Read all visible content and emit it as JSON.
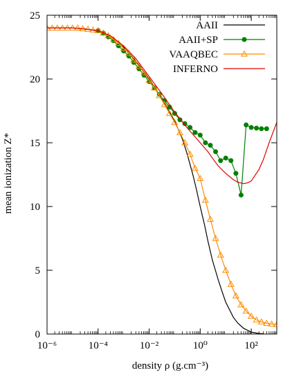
{
  "chart_data": {
    "type": "line",
    "xlabel": "density ρ (g.cm⁻³)",
    "ylabel": "mean ionization Z*",
    "x_scale": "log",
    "xlim": [
      1e-06,
      1000
    ],
    "ylim": [
      0,
      25
    ],
    "x_ticks": [
      1e-06,
      0.0001,
      0.01,
      1,
      100
    ],
    "x_tick_labels": [
      "10⁻⁶",
      "10⁻⁴",
      "10⁻²",
      "10⁰",
      "10²"
    ],
    "y_ticks": [
      0,
      5,
      10,
      15,
      20,
      25
    ],
    "y_tick_labels": [
      "0",
      "5",
      "10",
      "15",
      "20",
      "25"
    ],
    "legend_position": "top-right",
    "series": [
      {
        "name": "AAII",
        "color": "#000000",
        "marker": "none",
        "x": [
          1e-06,
          1e-05,
          3e-05,
          0.0001,
          0.0003,
          0.001,
          0.003,
          0.01,
          0.03,
          0.1,
          0.2,
          0.3,
          0.5,
          0.7,
          1,
          1.5,
          2,
          3,
          5,
          7,
          10,
          20,
          30,
          50,
          100,
          200,
          300
        ],
        "y": [
          24.0,
          24.0,
          23.95,
          23.75,
          23.3,
          22.5,
          21.4,
          20.0,
          18.5,
          16.7,
          15.3,
          14.2,
          12.6,
          11.4,
          10.0,
          8.5,
          7.3,
          5.8,
          4.3,
          3.4,
          2.5,
          1.3,
          0.85,
          0.45,
          0.15,
          0.04,
          0.02
        ]
      },
      {
        "name": "AAII+SP",
        "color": "#008000",
        "marker": "circle",
        "x": [
          0.0001,
          0.00016,
          0.00025,
          0.0004,
          0.00063,
          0.001,
          0.0016,
          0.0025,
          0.004,
          0.0063,
          0.01,
          0.016,
          0.025,
          0.04,
          0.063,
          0.1,
          0.16,
          0.25,
          0.4,
          0.63,
          1.0,
          1.6,
          2.5,
          4,
          6.3,
          10,
          16,
          25,
          40,
          63,
          100,
          160,
          250,
          400
        ],
        "y": [
          23.8,
          23.6,
          23.3,
          23.0,
          22.6,
          22.2,
          21.8,
          21.3,
          20.8,
          20.3,
          19.8,
          19.3,
          18.8,
          18.3,
          17.8,
          17.3,
          16.8,
          16.5,
          16.2,
          15.8,
          15.6,
          15.0,
          14.8,
          14.3,
          13.6,
          13.8,
          13.6,
          12.6,
          10.9,
          16.4,
          16.2,
          16.15,
          16.1,
          16.1
        ]
      },
      {
        "name": "VAAQBEC",
        "color": "#ff8c00",
        "marker": "triangle",
        "x": [
          1e-06,
          1.6e-06,
          2.5e-06,
          4e-06,
          6.3e-06,
          1e-05,
          1.6e-05,
          2.5e-05,
          4e-05,
          6.3e-05,
          0.0001,
          0.00016,
          0.00025,
          0.0004,
          0.00063,
          0.001,
          0.0016,
          0.0025,
          0.004,
          0.0063,
          0.01,
          0.016,
          0.025,
          0.04,
          0.063,
          0.1,
          0.16,
          0.25,
          0.4,
          0.63,
          1.0,
          1.6,
          2.5,
          4,
          6.3,
          10,
          16,
          25,
          40,
          63,
          100,
          160,
          250,
          400,
          630,
          1000
        ],
        "y": [
          24.0,
          24.0,
          24.0,
          24.0,
          24.0,
          24.0,
          24.0,
          23.95,
          23.9,
          23.85,
          23.8,
          23.6,
          23.4,
          23.1,
          22.8,
          22.4,
          22.0,
          21.5,
          21.0,
          20.5,
          19.9,
          19.3,
          18.7,
          18.0,
          17.3,
          16.6,
          15.8,
          15.0,
          14.1,
          13.0,
          12.2,
          10.5,
          9.0,
          7.5,
          6.2,
          5.0,
          3.9,
          3.0,
          2.3,
          1.8,
          1.4,
          1.1,
          0.95,
          0.85,
          0.78,
          0.75
        ]
      },
      {
        "name": "INFERNO",
        "color": "#e00000",
        "marker": "none",
        "x": [
          1e-06,
          1e-05,
          0.0001,
          0.0003,
          0.001,
          0.003,
          0.01,
          0.03,
          0.1,
          0.3,
          1,
          2,
          3,
          5,
          10,
          20,
          30,
          50,
          70,
          100,
          200,
          300,
          500,
          1000
        ],
        "y": [
          24.0,
          24.0,
          23.8,
          23.4,
          22.6,
          21.6,
          20.2,
          18.9,
          17.4,
          16.2,
          15.0,
          14.3,
          13.8,
          13.2,
          12.6,
          12.1,
          11.9,
          11.8,
          11.85,
          12.0,
          12.9,
          13.7,
          15.0,
          16.6
        ]
      }
    ]
  }
}
